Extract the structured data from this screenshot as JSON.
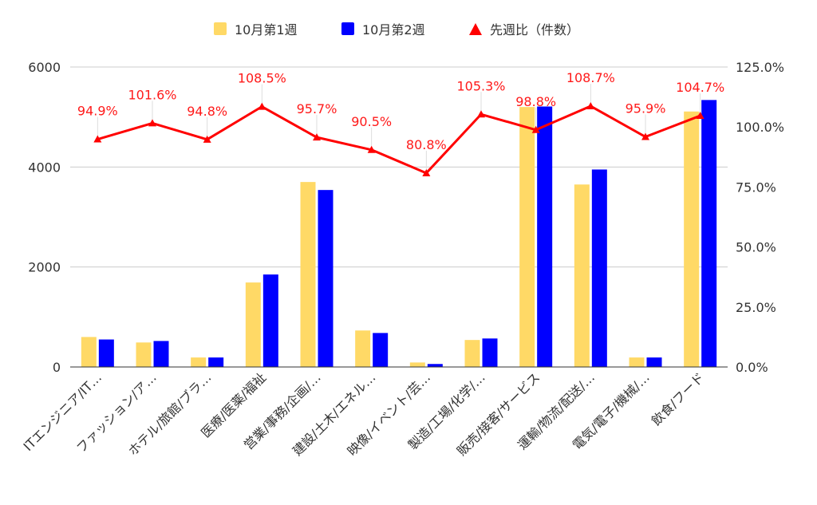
{
  "chart_data": {
    "type": "bar",
    "title": "",
    "xlabel": "",
    "ylabel": "",
    "categories": [
      "ITエンジニア/IT…",
      "ファッション/ア…",
      "ホテル/旅館/ブラ…",
      "医療/医薬/福祉",
      "営業/事務/企画/…",
      "建設/土木/エネル…",
      "映像/イベント/芸…",
      "製造/工場/化学/…",
      "販売/接客/サービス",
      "運輸/物流/配送/…",
      "電気/電子/機械/…",
      "飲食/フード"
    ],
    "series": [
      {
        "name": "10月第1週",
        "type": "bar",
        "axis": "left",
        "color": "#ffd966",
        "values": [
          600,
          490,
          190,
          1690,
          3700,
          730,
          90,
          540,
          5200,
          3650,
          190,
          5110
        ]
      },
      {
        "name": "10月第2週",
        "type": "bar",
        "axis": "left",
        "color": "#0000ff",
        "values": [
          550,
          520,
          190,
          1850,
          3540,
          680,
          60,
          570,
          5210,
          3950,
          190,
          5340
        ]
      },
      {
        "name": "先週比（件数）",
        "type": "line",
        "axis": "right",
        "color": "#ff0000",
        "marker": "triangle",
        "values": [
          94.9,
          101.6,
          94.8,
          108.5,
          95.7,
          90.5,
          80.8,
          105.3,
          98.8,
          108.7,
          95.9,
          104.7
        ],
        "labels": [
          "94.9%",
          "101.6%",
          "94.8%",
          "108.5%",
          "95.7%",
          "90.5%",
          "80.8%",
          "105.3%",
          "98.8%",
          "108.7%",
          "95.9%",
          "104.7%"
        ]
      }
    ],
    "yaxis_left": {
      "min": 0,
      "max": 6000,
      "ticks": [
        0,
        2000,
        4000,
        6000
      ],
      "tick_labels": [
        "0",
        "2000",
        "4000",
        "6000"
      ]
    },
    "yaxis_right": {
      "min": 0,
      "max": 125,
      "ticks": [
        0,
        25,
        50,
        75,
        100,
        125
      ],
      "tick_labels": [
        "0.0%",
        "25.0%",
        "50.0%",
        "75.0%",
        "100.0%",
        "125.0%"
      ]
    },
    "grid": true,
    "legend": "top-center"
  }
}
